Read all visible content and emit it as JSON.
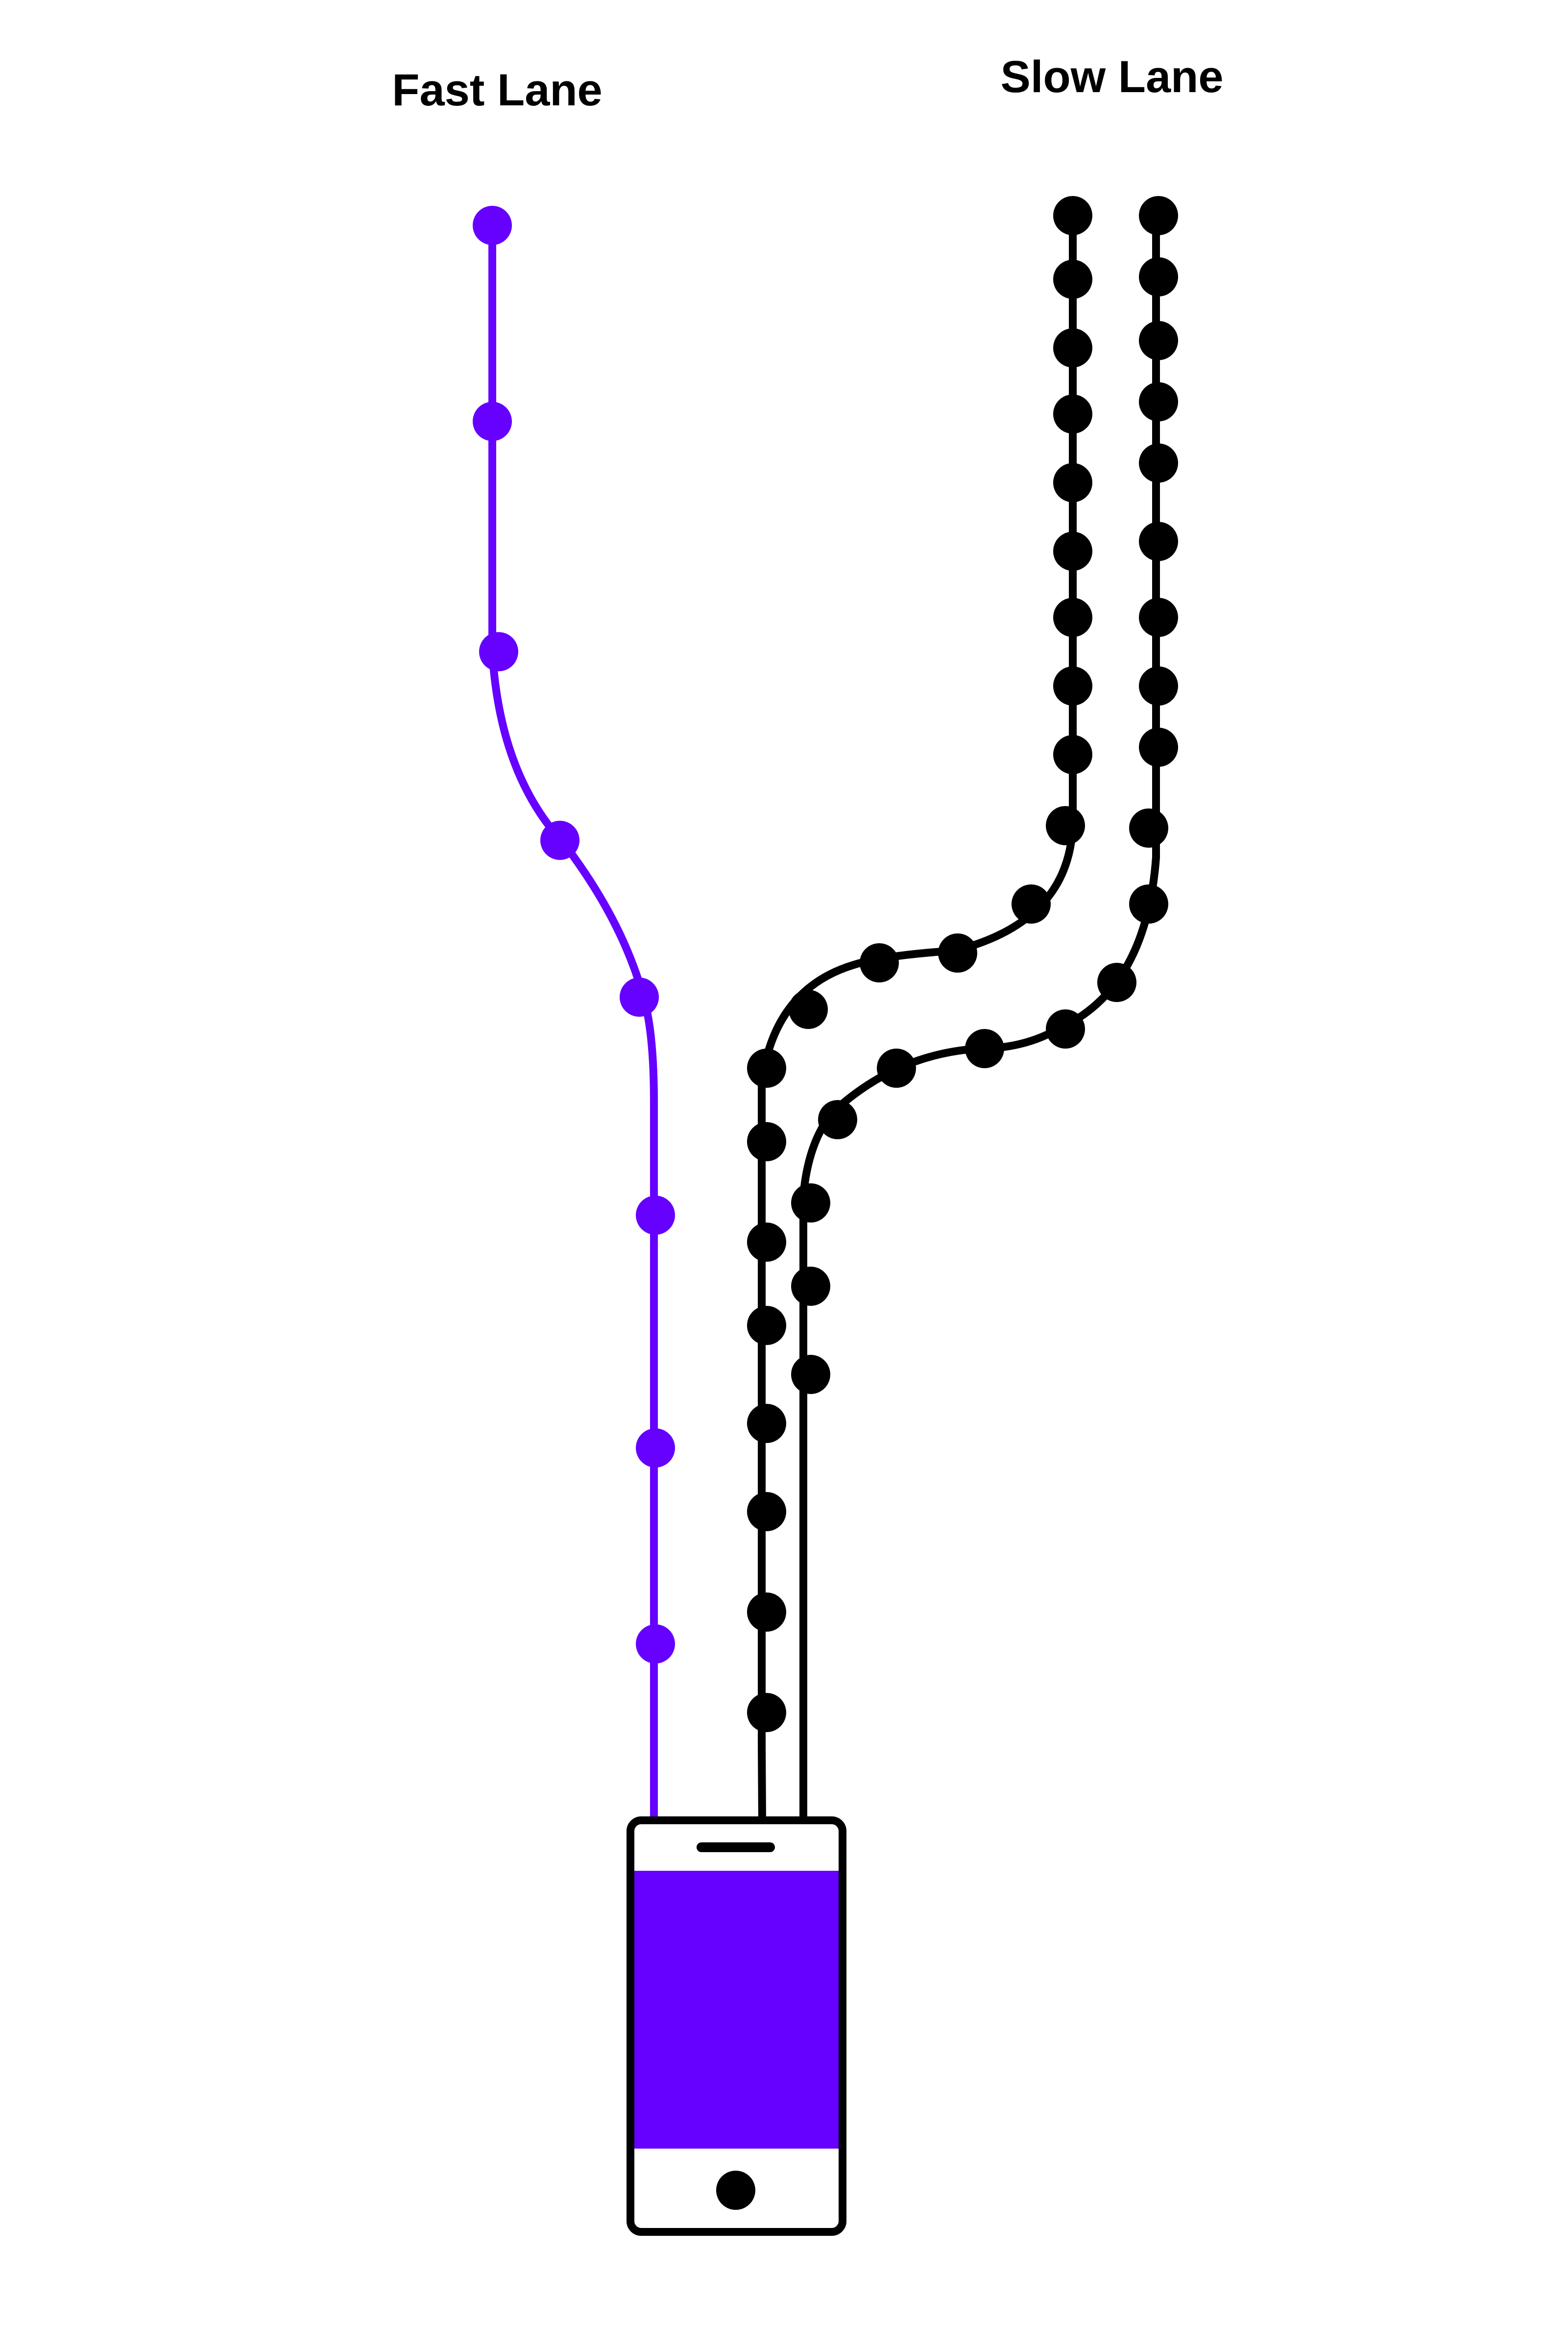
{
  "labels": {
    "fast_lane": "Fast Lane",
    "slow_lane": "Slow Lane"
  },
  "colors": {
    "fast_lane": "#6600ff",
    "slow_lane": "#000000",
    "phone_outline": "#000000",
    "phone_screen": "#6600ff",
    "background": "#ffffff"
  },
  "lanes": [
    {
      "id": "fast-lane",
      "color_key": "fast_lane",
      "node_count": 8
    },
    {
      "id": "slow-lane-1",
      "color_key": "slow_lane",
      "node_count": 22
    },
    {
      "id": "slow-lane-2",
      "color_key": "slow_lane",
      "node_count": 19
    }
  ],
  "icons": {
    "device": "smartphone-icon"
  }
}
